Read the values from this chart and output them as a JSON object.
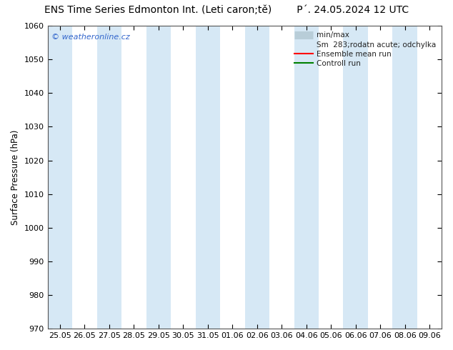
{
  "title_left": "ENS Time Series Edmonton Int. (Leti caron;tě)",
  "title_right": "P´. 24.05.2024 12 UTC",
  "ylabel": "Surface Pressure (hPa)",
  "watermark": "© weatheronline.cz",
  "ylim": [
    970,
    1060
  ],
  "yticks": [
    970,
    980,
    990,
    1000,
    1010,
    1020,
    1030,
    1040,
    1050,
    1060
  ],
  "xtick_labels": [
    "25.05",
    "26.05",
    "27.05",
    "28.05",
    "29.05",
    "30.05",
    "31.05",
    "01.06",
    "02.06",
    "03.06",
    "04.06",
    "05.06",
    "06.06",
    "07.06",
    "08.06",
    "09.06"
  ],
  "background_color": "#ffffff",
  "plot_bg_color": "#ffffff",
  "band_color": "#d6e8f5",
  "band_positions": [
    0,
    2,
    4,
    6,
    8,
    10,
    12,
    14
  ],
  "legend_minmax_color": "#b8cdd8",
  "legend_std_color": "#d6e8f5",
  "legend_mean_color": "#ff0000",
  "legend_ctrl_color": "#008000",
  "title_fontsize": 10,
  "axis_fontsize": 8.5,
  "tick_fontsize": 8
}
